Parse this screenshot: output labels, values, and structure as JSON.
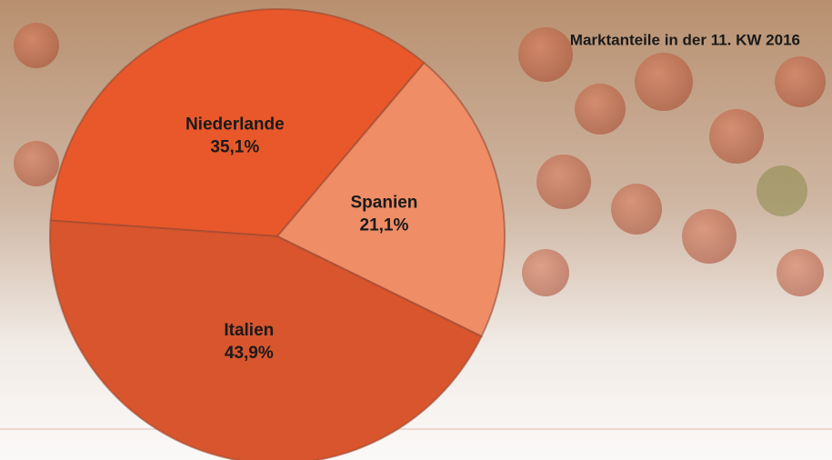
{
  "chart_data": {
    "type": "pie",
    "title": "Marktanteile in der 11. KW 2016",
    "categories": [
      "Niederlande",
      "Spanien",
      "Italien"
    ],
    "values": [
      35.1,
      21.1,
      43.9
    ],
    "value_labels": [
      "35,1%",
      "21,1%",
      "43,9%"
    ],
    "colors": [
      "#e8582b",
      "#ee8d66",
      "#d8552d"
    ]
  }
}
